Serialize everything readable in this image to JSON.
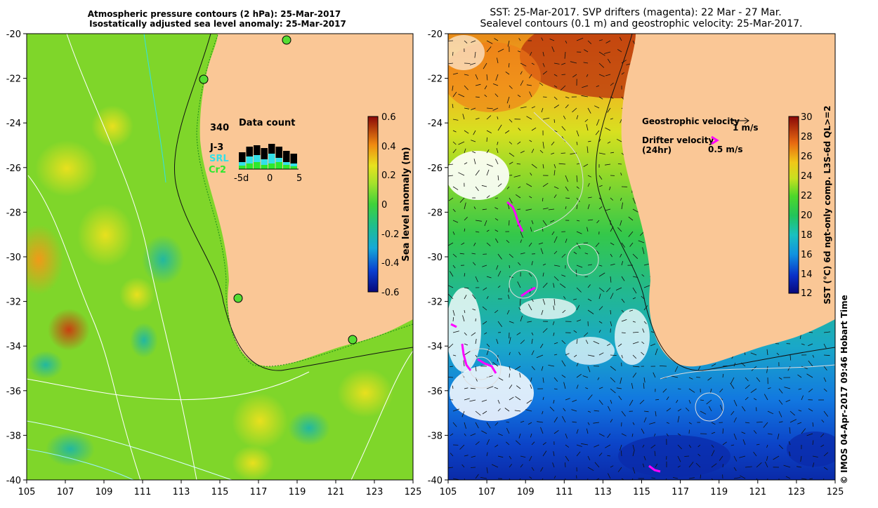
{
  "left_panel": {
    "title_line1": "Atmospheric pressure contours (2 hPa): 25-Mar-2017",
    "title_line2": "Isostatically adjusted sea level anomaly: 25-Mar-2017",
    "y_ticks": [
      "-20",
      "-22",
      "-24",
      "-26",
      "-28",
      "-30",
      "-32",
      "-34",
      "-36",
      "-38",
      "-40"
    ],
    "x_ticks": [
      "105",
      "107",
      "109",
      "111",
      "113",
      "115",
      "117",
      "119",
      "121",
      "123",
      "125"
    ],
    "inset": {
      "title": "Data count",
      "count": "340",
      "legend": [
        {
          "label": "J-3",
          "color": "#000000"
        },
        {
          "label": "SRL",
          "color": "#33e0e8"
        },
        {
          "label": "Cr2",
          "color": "#2ee82e"
        }
      ],
      "axis_labels": [
        "-5d",
        "0",
        "5"
      ]
    },
    "colorbar": {
      "label": "Sea level anomaly (m)",
      "ticks": [
        "0.6",
        "0.4",
        "0.2",
        "0",
        "-0.2",
        "-0.4",
        "-0.6"
      ]
    }
  },
  "right_panel": {
    "title_line1": "SST: 25-Mar-2017. SVP drifters (magenta): 22 Mar - 27 Mar.",
    "title_line2": "Sealevel contours (0.1 m) and geostrophic velocity: 25-Mar-2017.",
    "y_ticks": [
      "-20",
      "-22",
      "-24",
      "-26",
      "-28",
      "-30",
      "-32",
      "-34",
      "-36",
      "-38",
      "-40"
    ],
    "x_ticks": [
      "105",
      "107",
      "109",
      "111",
      "113",
      "115",
      "117",
      "119",
      "121",
      "123",
      "125"
    ],
    "legend": {
      "geostrophic_label": "Geostrophic velocity",
      "geostrophic_scale": "1 m/s",
      "drifter_label": "Drifter velocity",
      "drifter_label2": "(24hr)",
      "drifter_scale": "0.5 m/s"
    },
    "colorbar": {
      "label": "SST (°C) 6d ngt-only comp. L3S-6d QL>=2",
      "ticks": [
        "30",
        "28",
        "26",
        "24",
        "22",
        "20",
        "18",
        "16",
        "14",
        "12"
      ]
    }
  },
  "credit": "© IMOS 04-Apr-2017 09:46 Hobart Time"
}
